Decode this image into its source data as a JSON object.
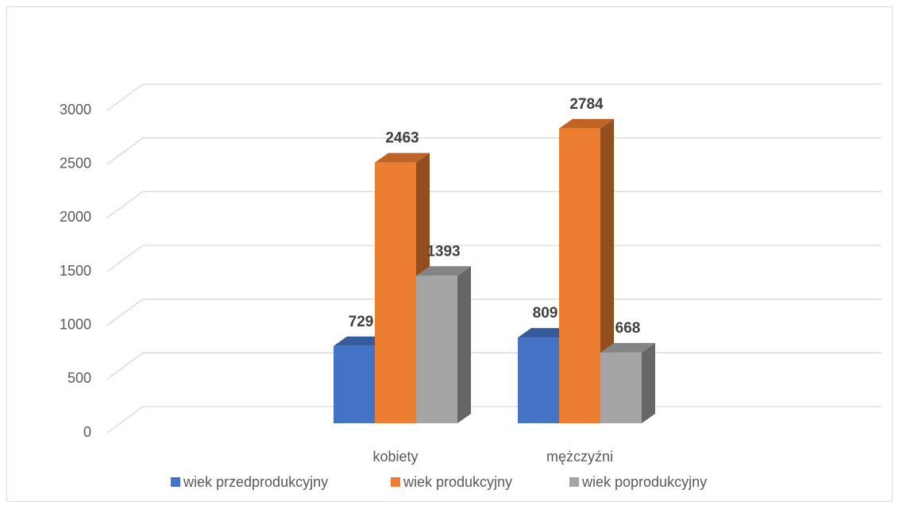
{
  "chart_data": {
    "type": "bar3d",
    "categories": [
      "kobiety",
      "mężczyźni"
    ],
    "series": [
      {
        "name": "wiek przedprodukcyjny",
        "color": "#4472c4",
        "values": [
          729,
          809
        ]
      },
      {
        "name": "wiek produkcyjny",
        "color": "#ed7d31",
        "values": [
          2463,
          2784
        ]
      },
      {
        "name": "wiek poprodukcyjny",
        "color": "#a5a5a5",
        "values": [
          1393,
          668
        ]
      }
    ],
    "ylim": [
      0,
      3000
    ],
    "yticks": [
      0,
      500,
      1000,
      1500,
      2000,
      2500,
      3000
    ],
    "grid": true,
    "legend": "bottom"
  }
}
